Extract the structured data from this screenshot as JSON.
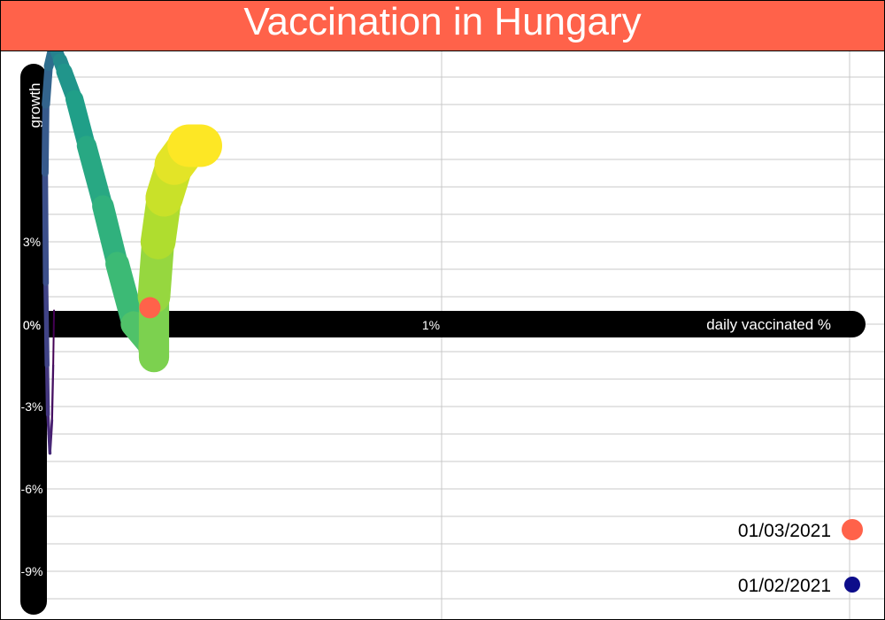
{
  "colors": {
    "accent": "#ff624a",
    "legend_start": "#0c0c8a",
    "axis": "#000000",
    "grid": "#c8c8c8"
  },
  "chart_data": {
    "type": "line",
    "title": "Vaccination in Hungary",
    "xlabel": "daily vaccinated %",
    "ylabel": "growth",
    "xlim": [
      -0.05,
      1.02
    ],
    "ylim": [
      -10.3,
      10.1
    ],
    "x_ticks": [
      {
        "value": 0,
        "label": "0%"
      },
      {
        "value": 1,
        "label": "1%"
      }
    ],
    "y_ticks": [
      {
        "value": 3,
        "label": "3%"
      },
      {
        "value": -3,
        "label": "-3%"
      },
      {
        "value": -6,
        "label": "-6%"
      },
      {
        "value": -9,
        "label": "-9%"
      }
    ],
    "grid": true,
    "series": [
      {
        "x": [
          0.05,
          0.048,
          0.045,
          0.04,
          0.035,
          0.033,
          0.03,
          0.028,
          0.03,
          0.037,
          0.048,
          0.057,
          0.065,
          0.075,
          0.1,
          0.13,
          0.17,
          0.205,
          0.245,
          0.29,
          0.295,
          0.295,
          0.305,
          0.32,
          0.345,
          0.38,
          0.41
        ],
        "y": [
          0.5,
          -1.5,
          -3.5,
          -4.7,
          -3.3,
          -1.5,
          1.5,
          5.5,
          8,
          9.4,
          10.1,
          9.9,
          9.6,
          9.2,
          8.2,
          6.5,
          4.3,
          2.2,
          0.0,
          -0.8,
          -1.2,
          1.0,
          3.0,
          4.6,
          5.8,
          6.5,
          6.5
        ],
        "width_start": 2,
        "width_end": 48
      }
    ],
    "highlight_point": {
      "x": 0.285,
      "y": 0.6
    },
    "legend": [
      {
        "label": "01/03/2021",
        "color": "#ff624a",
        "marker": "large-dot"
      },
      {
        "label": "01/02/2021",
        "color": "#0c0c8a",
        "marker": "small-dot"
      }
    ],
    "legend_position": "bottom-right"
  }
}
